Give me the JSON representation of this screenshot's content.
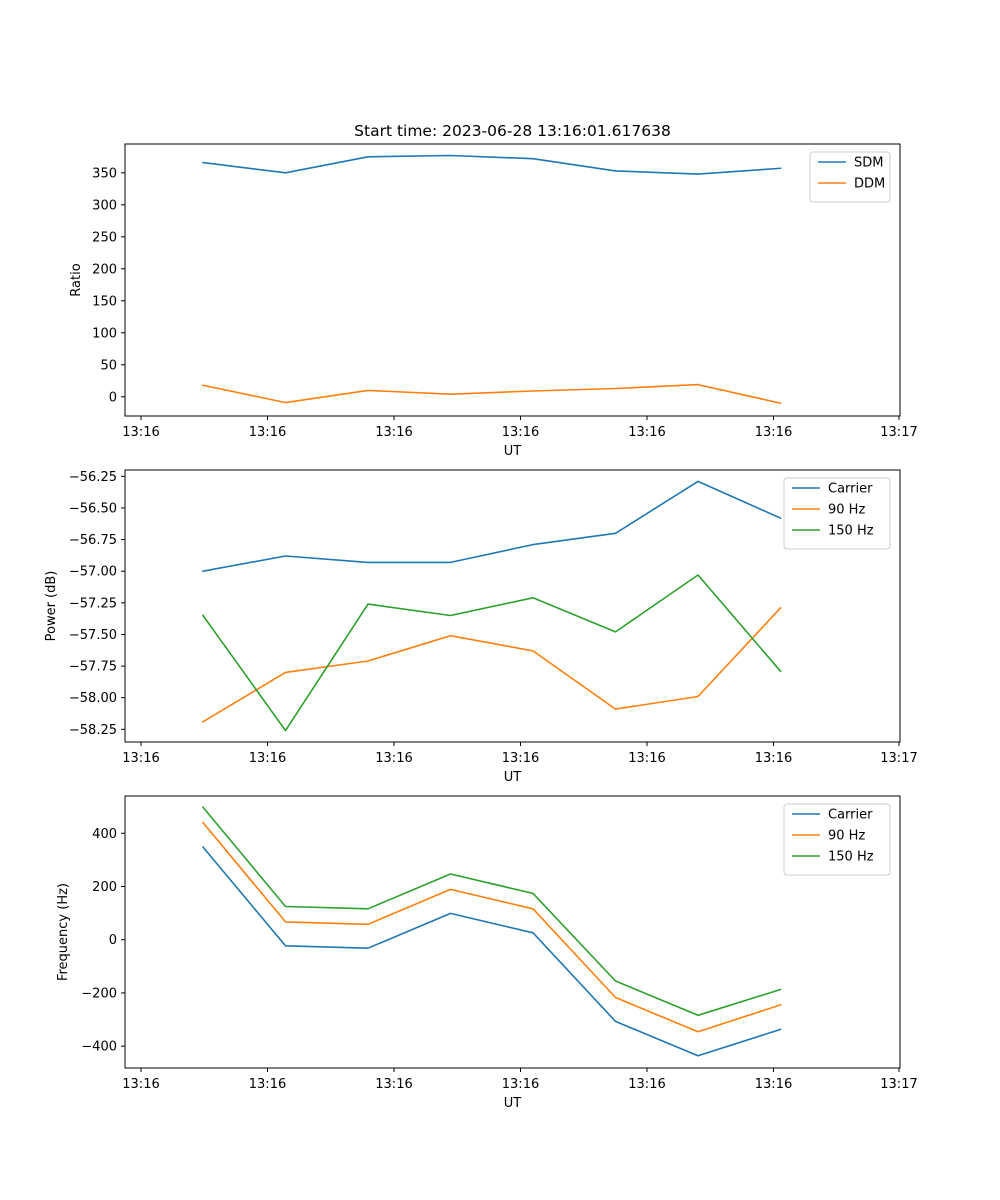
{
  "chart_data": [
    {
      "type": "line",
      "title": "Start time: 2023-06-28 13:16:01.617638",
      "xlabel": "UT",
      "ylabel": "Ratio",
      "x_ticks": [
        "13:16",
        "13:16",
        "13:16",
        "13:16",
        "13:16",
        "13:16",
        "13:17"
      ],
      "y_ticks": [
        0,
        50,
        100,
        150,
        200,
        250,
        300,
        350
      ],
      "y_tick_labels": [
        "0",
        "50",
        "100",
        "150",
        "200",
        "250",
        "300",
        "350"
      ],
      "ylim": [
        -30,
        395
      ],
      "legend": "top-right",
      "grid": false,
      "series": [
        {
          "name": "SDM",
          "color": "#1f77b4",
          "values": [
            366,
            350,
            375,
            377,
            372,
            353,
            348,
            357
          ]
        },
        {
          "name": "DDM",
          "color": "#ff7f0e",
          "values": [
            18,
            -9,
            10,
            4,
            9,
            13,
            19,
            -10
          ]
        }
      ]
    },
    {
      "type": "line",
      "title": "",
      "xlabel": "UT",
      "ylabel": "Power (dB)",
      "x_ticks": [
        "13:16",
        "13:16",
        "13:16",
        "13:16",
        "13:16",
        "13:16",
        "13:17"
      ],
      "y_ticks": [
        -58.25,
        -58.0,
        -57.75,
        -57.5,
        -57.25,
        -57.0,
        -56.75,
        -56.5,
        -56.25
      ],
      "y_tick_labels": [
        "−58.25",
        "−58.00",
        "−57.75",
        "−57.50",
        "−57.25",
        "−57.00",
        "−56.75",
        "−56.50",
        "−56.25"
      ],
      "ylim": [
        -58.35,
        -56.2
      ],
      "legend": "top-right",
      "grid": false,
      "series": [
        {
          "name": "Carrier",
          "color": "#1f77b4",
          "values": [
            -57.0,
            -56.88,
            -56.93,
            -56.93,
            -56.79,
            -56.7,
            -56.29,
            -56.58
          ]
        },
        {
          "name": "90 Hz",
          "color": "#ff7f0e",
          "values": [
            -58.19,
            -57.8,
            -57.71,
            -57.51,
            -57.63,
            -58.09,
            -57.99,
            -57.29
          ]
        },
        {
          "name": "150 Hz",
          "color": "#2ca02c",
          "values": [
            -57.35,
            -58.26,
            -57.26,
            -57.35,
            -57.21,
            -57.48,
            -57.03,
            -57.79
          ]
        }
      ]
    },
    {
      "type": "line",
      "title": "",
      "xlabel": "UT",
      "ylabel": "Frequency (Hz)",
      "x_ticks": [
        "13:16",
        "13:16",
        "13:16",
        "13:16",
        "13:16",
        "13:16",
        "13:17"
      ],
      "y_ticks": [
        -400,
        -200,
        0,
        200,
        400
      ],
      "y_tick_labels": [
        "−400",
        "−200",
        "0",
        "200",
        "400"
      ],
      "ylim": [
        -482,
        540
      ],
      "legend": "top-right",
      "grid": false,
      "series": [
        {
          "name": "Carrier",
          "color": "#1f77b4",
          "values": [
            348,
            -23,
            -32,
            99,
            26,
            -307,
            -436,
            -337
          ]
        },
        {
          "name": "90 Hz",
          "color": "#ff7f0e",
          "values": [
            440,
            67,
            58,
            189,
            116,
            -217,
            -346,
            -245
          ]
        },
        {
          "name": "150 Hz",
          "color": "#2ca02c",
          "values": [
            498,
            125,
            116,
            247,
            174,
            -155,
            -284,
            -187
          ]
        }
      ]
    }
  ]
}
